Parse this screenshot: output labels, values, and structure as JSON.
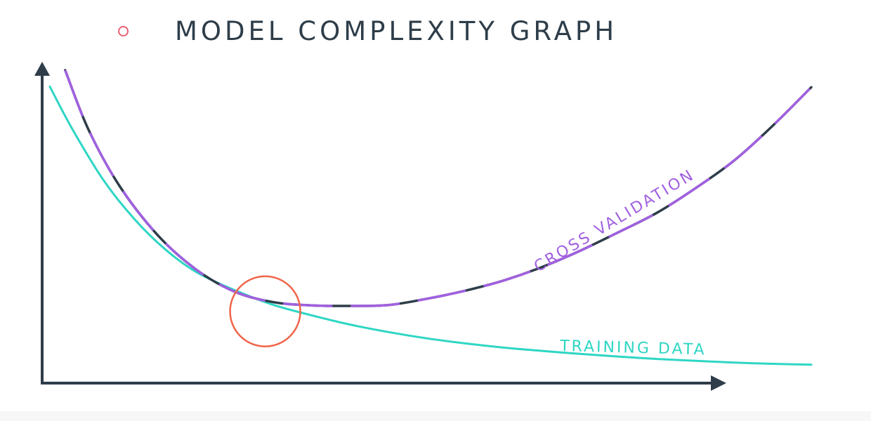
{
  "title": "MODEL COMPLEXITY GRAPH",
  "colors": {
    "title": "#2e3d49",
    "bullet": "#ec5f74",
    "axis": "#2e3d49",
    "cross_validation": "#a160e0",
    "cross_validation_dash": "#2e3d49",
    "training": "#2ed6c4",
    "highlight_circle": "#f0654a"
  },
  "chart_data": {
    "type": "line",
    "title": "MODEL COMPLEXITY GRAPH",
    "xlabel": "",
    "ylabel": "",
    "xlim": [
      0,
      100
    ],
    "ylim": [
      0,
      100
    ],
    "axes": {
      "ticks": false,
      "arrows": true,
      "grid": false
    },
    "series": [
      {
        "name": "CROSS VALIDATION",
        "label_style": "inline, rotated along curve",
        "x": [
          3,
          6,
          10,
          15,
          20,
          25,
          30,
          35,
          40,
          45,
          50,
          55,
          60,
          65,
          70,
          75,
          80,
          85,
          90,
          95,
          100
        ],
        "y": [
          100,
          80.3,
          61.6,
          45,
          33.5,
          26.1,
          22.6,
          21.5,
          21.3,
          21.6,
          23.7,
          26.4,
          29.8,
          34.3,
          39.8,
          46,
          52.5,
          60.7,
          69.9,
          81.5,
          94.3
        ]
      },
      {
        "name": "TRAINING DATA",
        "label_style": "inline, near right end",
        "x": [
          1,
          4,
          8,
          12,
          16,
          20,
          25,
          30,
          35,
          40,
          45,
          50,
          55,
          60,
          65,
          70,
          75,
          80,
          85,
          90,
          95,
          100
        ],
        "y": [
          94.5,
          80,
          63.2,
          50.3,
          40.2,
          32.7,
          26.6,
          21.7,
          18.2,
          15.1,
          12.6,
          10.5,
          8.8,
          7.4,
          6.3,
          5.3,
          4.4,
          3.6,
          3,
          2.4,
          2,
          1.7
        ]
      }
    ],
    "annotations": [
      {
        "type": "circle",
        "label": "",
        "x": 29,
        "y": 19.5
      }
    ]
  }
}
